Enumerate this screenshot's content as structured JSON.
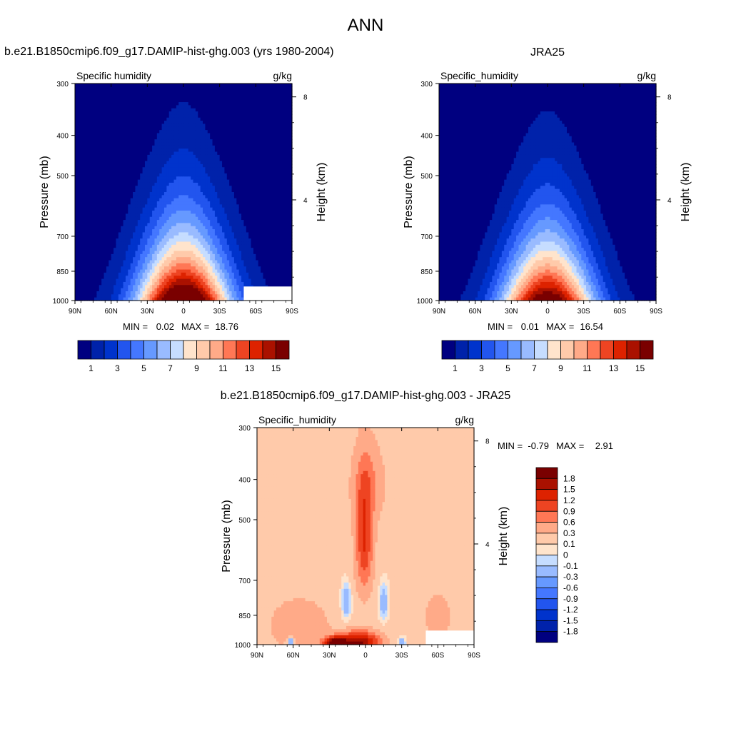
{
  "page_title": "ANN",
  "chart_data": [
    {
      "type": "heatmap",
      "title": "b.e21.B1850cmip6.f09_g17.DAMIP-hist-ghg.003 (yrs 1980-2004)",
      "variable": "Specific humidity",
      "units": "g/kg",
      "ylabel": "Pressure (mb)",
      "y2label": "Height (km)",
      "x_ticks": [
        "90N",
        "60N",
        "30N",
        "0",
        "30S",
        "60S",
        "90S"
      ],
      "xlim": [
        90,
        -90
      ],
      "y_ticks": [
        300,
        400,
        500,
        700,
        850,
        1000
      ],
      "ylim": [
        300,
        1000
      ],
      "y2_ticks": [
        8,
        4
      ],
      "stats": {
        "min_label": "MIN =",
        "min": "0.02",
        "max_label": "MAX =",
        "max": "18.76"
      },
      "peak": 18.76,
      "missing_southern_surface": true,
      "colorbar": {
        "orientation": "horizontal",
        "levels": [
          1,
          2,
          3,
          4,
          5,
          6,
          7,
          8,
          9,
          10,
          11,
          12,
          13,
          14,
          15
        ],
        "tick_labels": [
          "1",
          "3",
          "5",
          "7",
          "9",
          "11",
          "13",
          "15"
        ],
        "colors": [
          "#000080",
          "#0022aa",
          "#0033cc",
          "#2255ee",
          "#4477ff",
          "#6699ff",
          "#99bbff",
          "#c6ddff",
          "#ffe4cc",
          "#ffcaaa",
          "#ffaa88",
          "#ff7755",
          "#ee4422",
          "#dd2200",
          "#aa1100",
          "#7a0000"
        ]
      }
    },
    {
      "type": "heatmap",
      "title": "JRA25",
      "variable": "Specific_humidity",
      "units": "g/kg",
      "ylabel": "Pressure (mb)",
      "y2label": "Height (km)",
      "x_ticks": [
        "90N",
        "60N",
        "30N",
        "0",
        "30S",
        "60S",
        "90S"
      ],
      "xlim": [
        90,
        -90
      ],
      "y_ticks": [
        300,
        400,
        500,
        700,
        850,
        1000
      ],
      "ylim": [
        300,
        1000
      ],
      "y2_ticks": [
        8,
        4
      ],
      "stats": {
        "min_label": "MIN =",
        "min": "0.01",
        "max_label": "MAX =",
        "max": "16.54"
      },
      "peak": 16.54,
      "missing_southern_surface": false,
      "colorbar": {
        "orientation": "horizontal",
        "levels": [
          1,
          2,
          3,
          4,
          5,
          6,
          7,
          8,
          9,
          10,
          11,
          12,
          13,
          14,
          15
        ],
        "tick_labels": [
          "1",
          "3",
          "5",
          "7",
          "9",
          "11",
          "13",
          "15"
        ],
        "colors": [
          "#000080",
          "#0022aa",
          "#0033cc",
          "#2255ee",
          "#4477ff",
          "#6699ff",
          "#99bbff",
          "#c6ddff",
          "#ffe4cc",
          "#ffcaaa",
          "#ffaa88",
          "#ff7755",
          "#ee4422",
          "#dd2200",
          "#aa1100",
          "#7a0000"
        ]
      }
    },
    {
      "type": "heatmap",
      "title": "b.e21.B1850cmip6.f09_g17.DAMIP-hist-ghg.003 - JRA25",
      "variable": "Specific_humidity",
      "units": "g/kg",
      "ylabel": "Pressure (mb)",
      "y2label": "Height (km)",
      "x_ticks": [
        "90N",
        "60N",
        "30N",
        "0",
        "30S",
        "60S",
        "90S"
      ],
      "xlim": [
        90,
        -90
      ],
      "y_ticks": [
        300,
        400,
        500,
        700,
        850,
        1000
      ],
      "ylim": [
        300,
        1000
      ],
      "y2_ticks": [
        8,
        4
      ],
      "stats": {
        "min_label": "MIN =",
        "min": "-0.79",
        "max_label": "MAX =",
        "max": "2.91"
      },
      "missing_southern_surface": true,
      "colorbar": {
        "orientation": "vertical",
        "levels": [
          -1.8,
          -1.5,
          -1.2,
          -0.9,
          -0.6,
          -0.3,
          -0.1,
          0,
          0.1,
          0.3,
          0.6,
          0.9,
          1.2,
          1.5,
          1.8
        ],
        "tick_labels": [
          "1.8",
          "1.5",
          "1.2",
          "0.9",
          "0.6",
          "0.3",
          "0.1",
          "0",
          "-0.1",
          "-0.3",
          "-0.6",
          "-0.9",
          "-1.2",
          "-1.5",
          "-1.8"
        ],
        "colors": [
          "#000080",
          "#0022aa",
          "#0033cc",
          "#2255ee",
          "#4477ff",
          "#6699ff",
          "#99bbff",
          "#c6ddff",
          "#ffe4cc",
          "#ffcaaa",
          "#ffaa88",
          "#ff7755",
          "#ee4422",
          "#dd2200",
          "#aa1100",
          "#7a0000"
        ]
      }
    }
  ]
}
